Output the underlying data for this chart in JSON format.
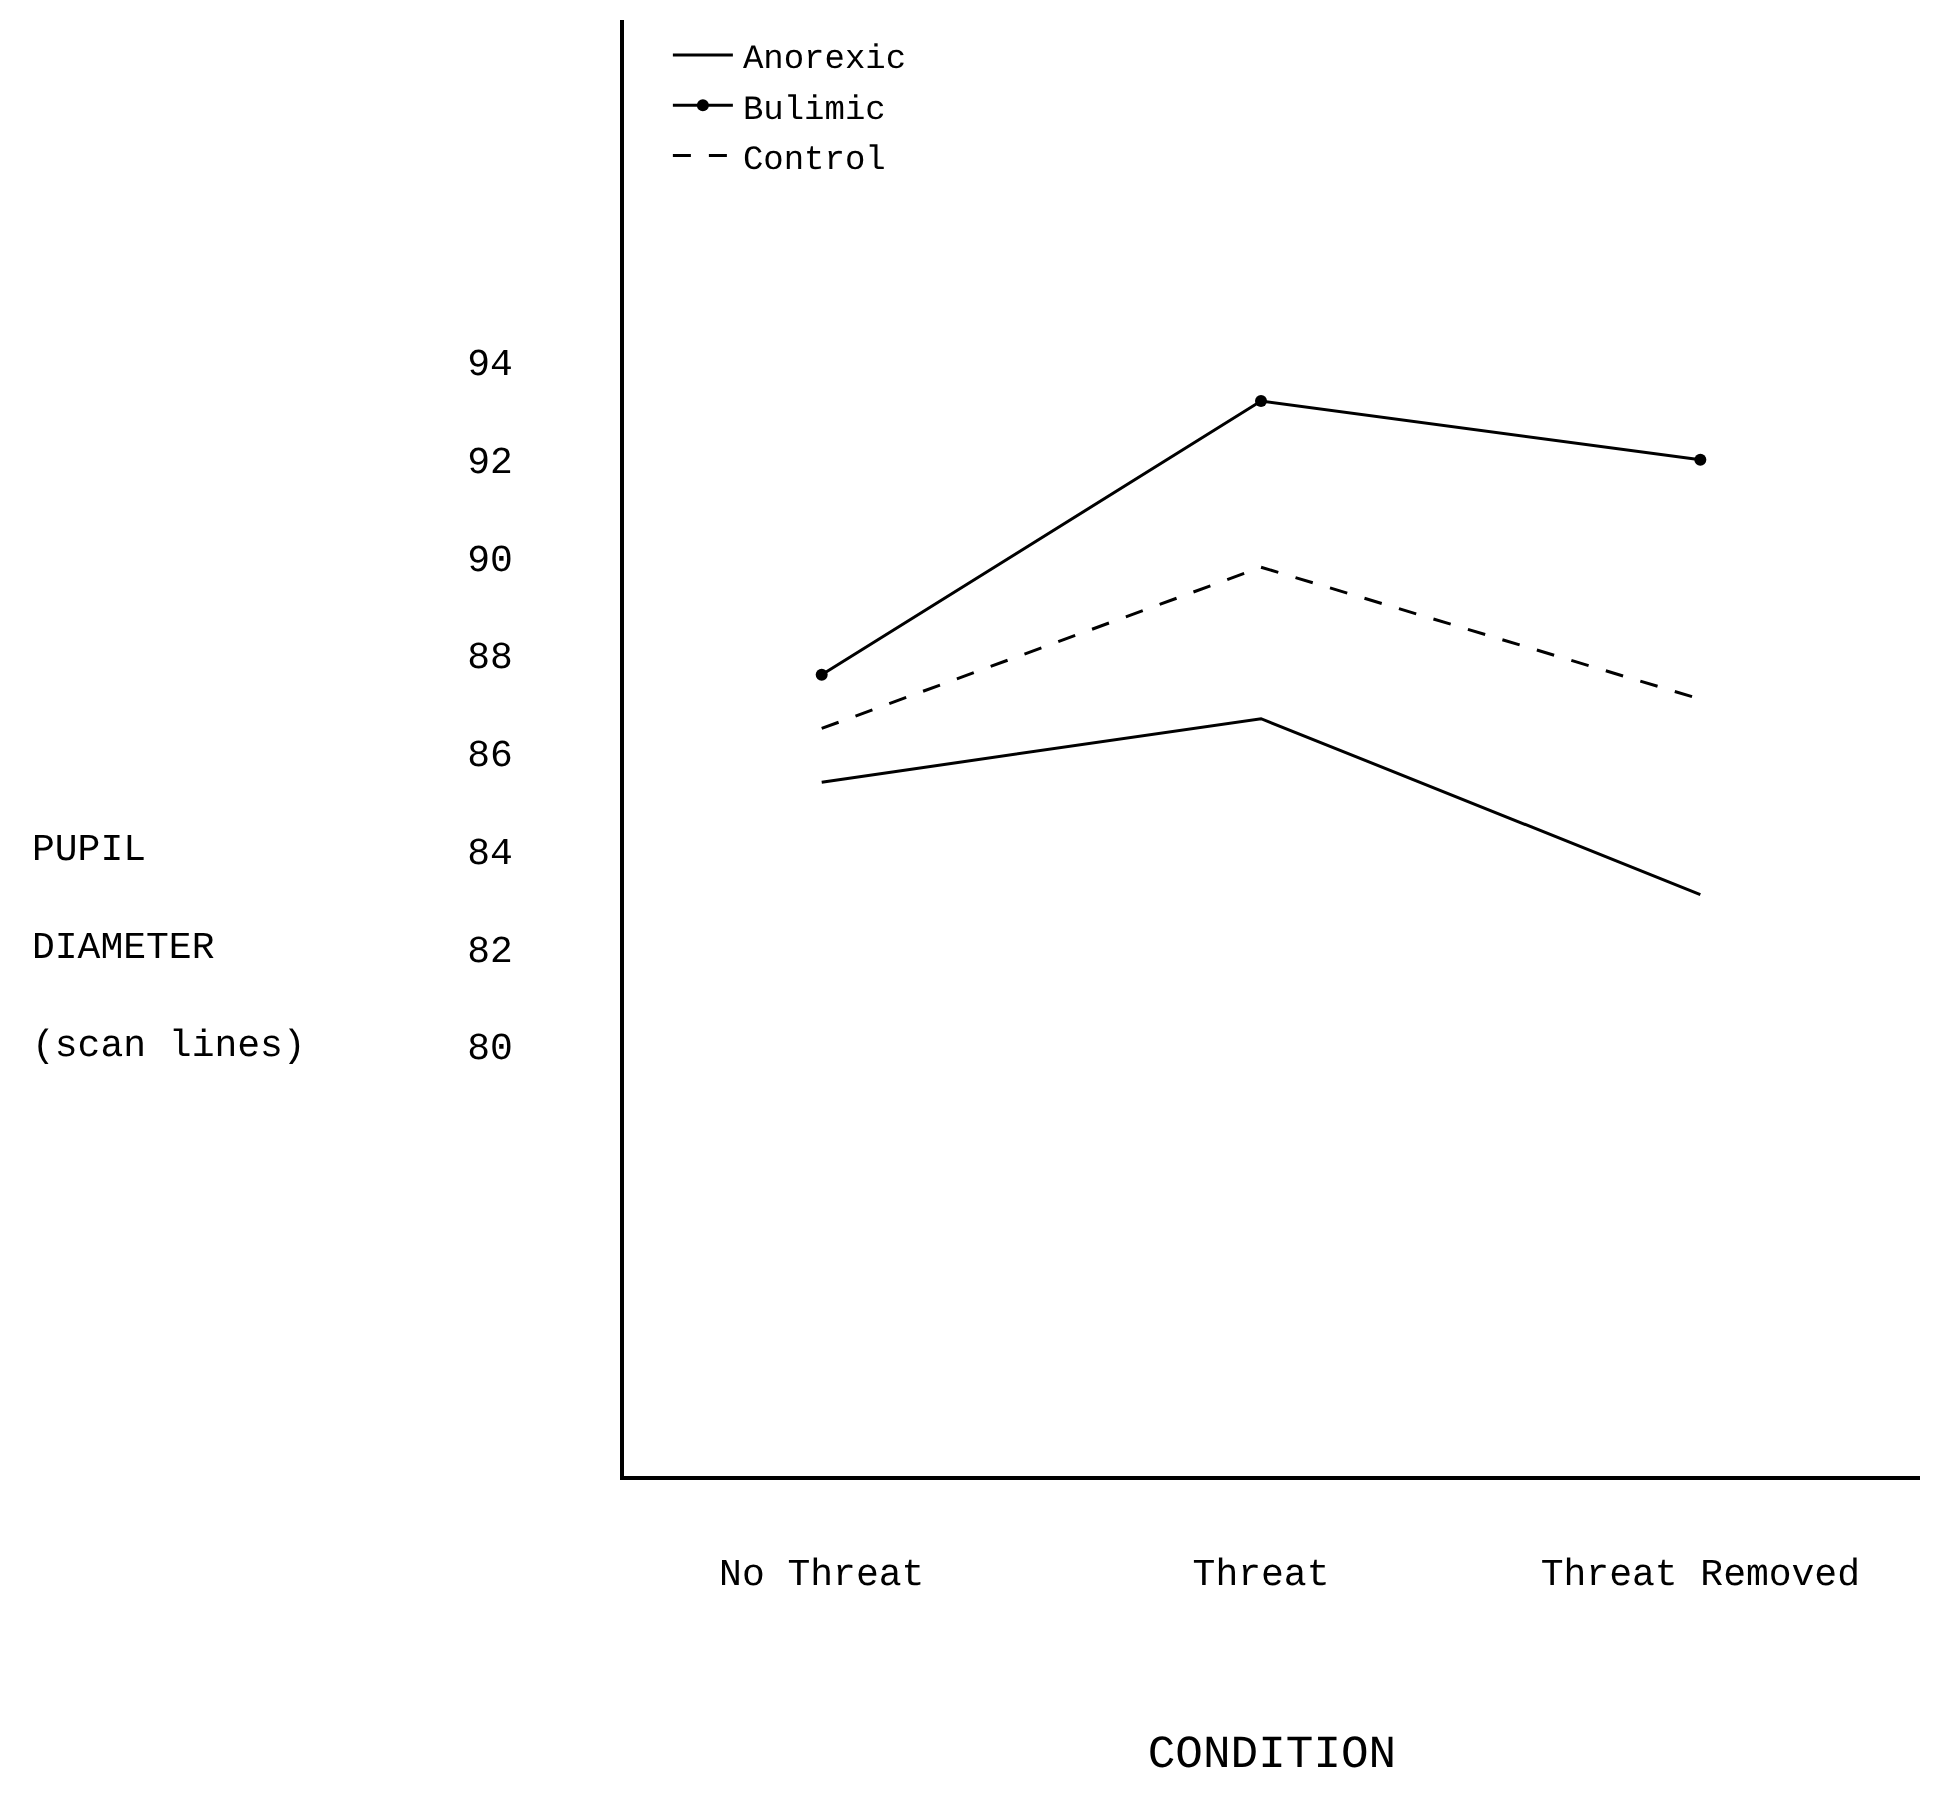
{
  "chart_data": {
    "type": "line",
    "xlabel": "CONDITION",
    "ylabel": "PUPIL\nDIAMETER\n(scan lines)",
    "categories": [
      "No Threat",
      "Threat",
      "Threat Removed"
    ],
    "series": [
      {
        "name": "Anorexic",
        "color": "#000000",
        "values": [
          85.4,
          86.7,
          83.1
        ],
        "marker": "none",
        "line_style": "solid"
      },
      {
        "name": "Bulimic",
        "color": "#000000",
        "values": [
          87.6,
          93.2,
          92.0
        ],
        "marker": "circle",
        "line_style": "solid"
      },
      {
        "name": "Control",
        "color": "#000000",
        "values": [
          86.5,
          89.8,
          87.1
        ],
        "marker": "none",
        "line_style": "dashed"
      }
    ],
    "ylim": [
      71.2,
      101
    ],
    "yticks": [
      80,
      82,
      84,
      86,
      88,
      90,
      92,
      94
    ],
    "legend": "top"
  }
}
